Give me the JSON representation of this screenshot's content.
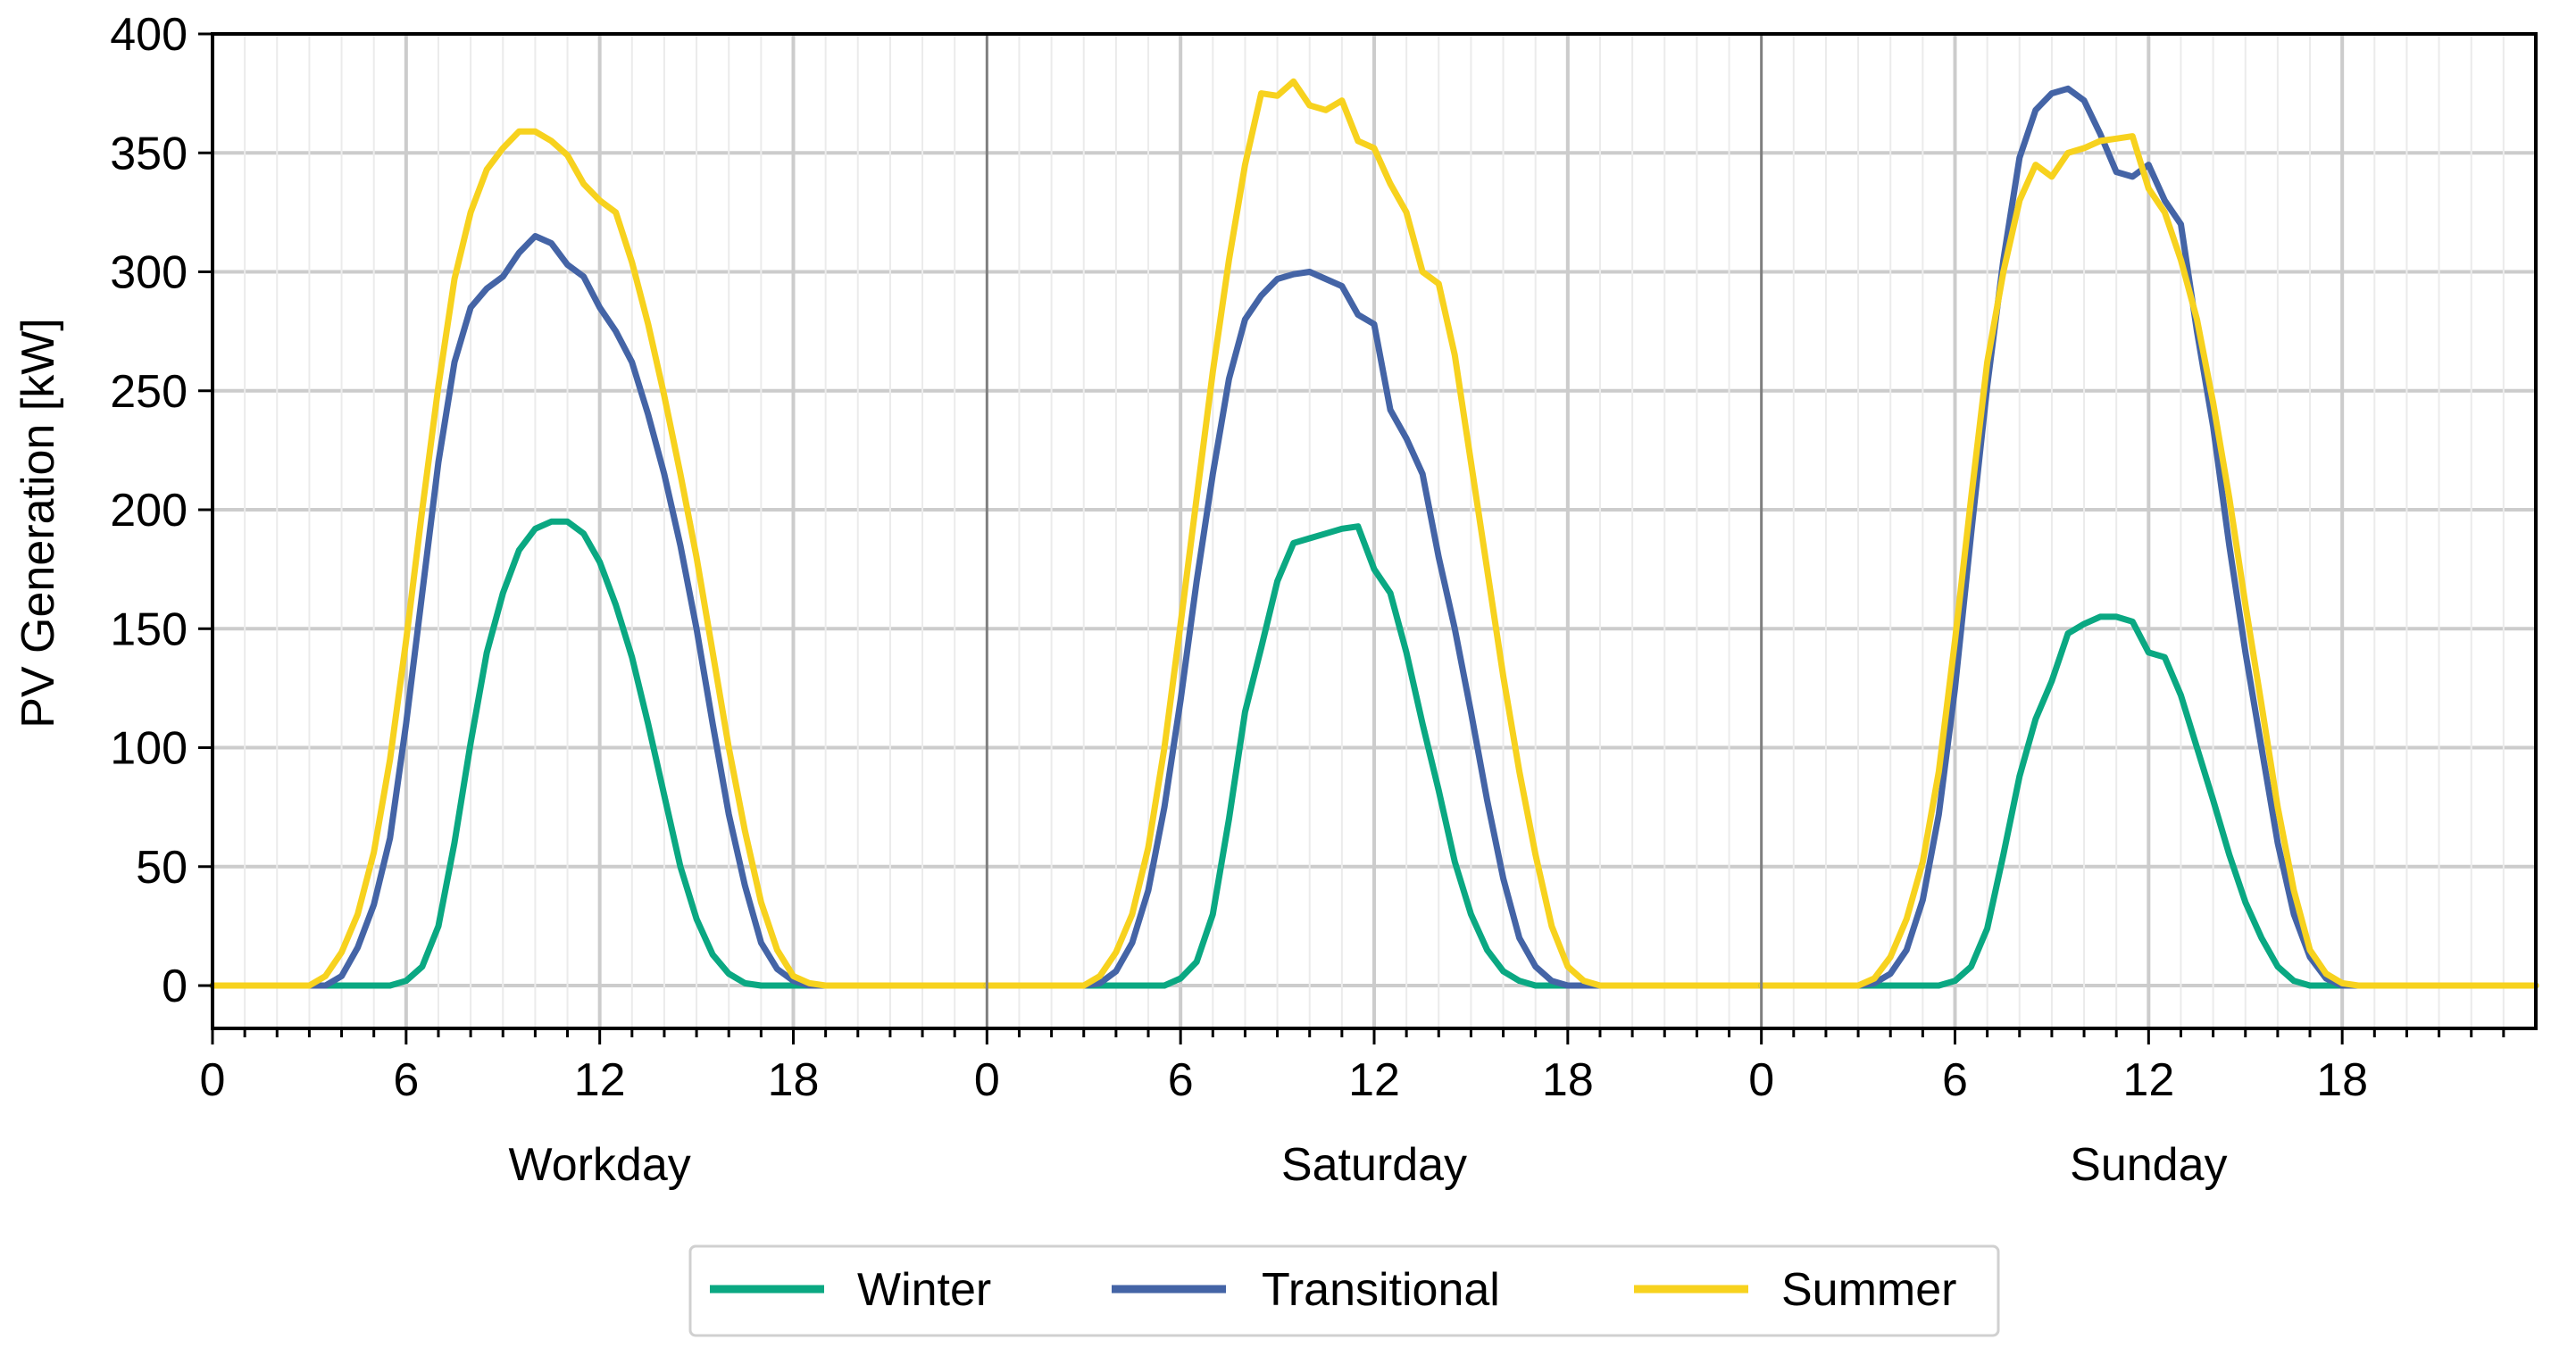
{
  "chart_data": {
    "type": "line",
    "ylabel": "PV Generation [kW]",
    "ylim": [
      -18,
      400
    ],
    "yticks": [
      0,
      50,
      100,
      150,
      200,
      250,
      300,
      350,
      400
    ],
    "xlim": [
      0,
      24
    ],
    "xticks": [
      0,
      6,
      12,
      18
    ],
    "xminor_step": 1,
    "grid": true,
    "legend_position": "bottom-center",
    "colors": {
      "Winter": "#0aa882",
      "Transitional": "#4464a6",
      "Summer": "#f7d21e"
    },
    "panels": [
      {
        "title": "Workday",
        "series": [
          {
            "name": "Winter",
            "x": [
              0,
              4.5,
              5.5,
              6,
              6.5,
              7,
              7.5,
              8,
              8.5,
              9,
              9.5,
              10,
              10.5,
              11,
              11.5,
              12,
              12.5,
              13,
              13.5,
              14,
              14.5,
              15,
              15.5,
              16,
              16.5,
              17,
              17.5,
              18,
              24
            ],
            "y": [
              0,
              0,
              0,
              2,
              8,
              25,
              60,
              102,
              140,
              165,
              183,
              192,
              195,
              195,
              190,
              178,
              160,
              138,
              110,
              80,
              50,
              28,
              13,
              5,
              1,
              0,
              0,
              0,
              0
            ]
          },
          {
            "name": "Transitional",
            "x": [
              0,
              3,
              3.5,
              4,
              4.5,
              5,
              5.5,
              6,
              6.5,
              7,
              7.5,
              8,
              8.5,
              9,
              9.5,
              10,
              10.5,
              11,
              11.5,
              12,
              12.5,
              13,
              13.5,
              14,
              14.5,
              15,
              15.5,
              16,
              16.5,
              17,
              17.5,
              18,
              18.5,
              19,
              24
            ],
            "y": [
              0,
              0,
              0,
              4,
              16,
              34,
              62,
              110,
              165,
              220,
              262,
              285,
              293,
              298,
              308,
              315,
              312,
              303,
              298,
              285,
              275,
              262,
              240,
              215,
              185,
              150,
              110,
              72,
              42,
              18,
              7,
              2,
              0,
              0,
              0
            ]
          },
          {
            "name": "Summer",
            "x": [
              0,
              3,
              3.5,
              4,
              4.5,
              5,
              5.5,
              6,
              6.5,
              7,
              7.5,
              8,
              8.5,
              9,
              9.5,
              10,
              10.5,
              11,
              11.5,
              12,
              12.5,
              13,
              13.5,
              14,
              14.5,
              15,
              15.5,
              16,
              16.5,
              17,
              17.5,
              18,
              18.5,
              19,
              24
            ],
            "y": [
              0,
              0,
              4,
              14,
              30,
              56,
              95,
              145,
              200,
              252,
              297,
              325,
              343,
              352,
              359,
              359,
              355,
              349,
              337,
              330,
              325,
              304,
              278,
              248,
              215,
              180,
              140,
              100,
              65,
              35,
              15,
              4,
              1,
              0,
              0
            ]
          }
        ]
      },
      {
        "title": "Saturday",
        "series": [
          {
            "name": "Winter",
            "x": [
              0,
              4.5,
              5.5,
              6,
              6.5,
              7,
              7.5,
              8,
              8.5,
              9,
              9.5,
              10,
              10.5,
              11,
              11.5,
              12,
              12.5,
              13,
              13.5,
              14,
              14.5,
              15,
              15.5,
              16,
              16.5,
              17,
              17.5,
              18,
              24
            ],
            "y": [
              0,
              0,
              0,
              3,
              10,
              30,
              70,
              115,
              142,
              170,
              186,
              188,
              190,
              192,
              193,
              175,
              165,
              140,
              110,
              82,
              52,
              30,
              15,
              6,
              2,
              0,
              0,
              0,
              0
            ]
          },
          {
            "name": "Transitional",
            "x": [
              0,
              3,
              3.5,
              4,
              4.5,
              5,
              5.5,
              6,
              6.5,
              7,
              7.5,
              8,
              8.5,
              9,
              9.5,
              10,
              10.5,
              11,
              11.5,
              12,
              12.5,
              13,
              13.5,
              14,
              14.5,
              15,
              15.5,
              16,
              16.5,
              17,
              17.5,
              18,
              18.5,
              19,
              24
            ],
            "y": [
              0,
              0,
              1,
              6,
              18,
              40,
              75,
              120,
              170,
              215,
              255,
              280,
              290,
              297,
              299,
              300,
              297,
              294,
              282,
              278,
              242,
              230,
              215,
              180,
              150,
              115,
              78,
              45,
              20,
              8,
              2,
              0,
              0,
              0,
              0
            ]
          },
          {
            "name": "Summer",
            "x": [
              0,
              3,
              3.5,
              4,
              4.5,
              5,
              5.5,
              6,
              6.5,
              7,
              7.5,
              8,
              8.5,
              9,
              9.5,
              10,
              10.5,
              11,
              11.5,
              12,
              12.5,
              13,
              13.5,
              14,
              14.5,
              15,
              15.5,
              16,
              16.5,
              17,
              17.5,
              18,
              18.5,
              19,
              24
            ],
            "y": [
              0,
              0,
              4,
              14,
              30,
              58,
              100,
              152,
              205,
              258,
              305,
              345,
              375,
              374,
              380,
              370,
              368,
              372,
              355,
              352,
              337,
              325,
              300,
              295,
              265,
              220,
              175,
              130,
              90,
              55,
              25,
              8,
              2,
              0,
              0
            ]
          }
        ]
      },
      {
        "title": "Sunday",
        "series": [
          {
            "name": "Winter",
            "x": [
              0,
              4.5,
              5.5,
              6,
              6.5,
              7,
              7.5,
              8,
              8.5,
              9,
              9.5,
              10,
              10.5,
              11,
              11.5,
              12,
              12.5,
              13,
              13.5,
              14,
              14.5,
              15,
              15.5,
              16,
              16.5,
              17,
              17.5,
              18,
              24
            ],
            "y": [
              0,
              0,
              0,
              2,
              8,
              24,
              55,
              88,
              112,
              128,
              148,
              152,
              155,
              155,
              153,
              140,
              138,
              122,
              100,
              78,
              55,
              35,
              20,
              8,
              2,
              0,
              0,
              0,
              0
            ]
          },
          {
            "name": "Transitional",
            "x": [
              0,
              3,
              3.5,
              4,
              4.5,
              5,
              5.5,
              6,
              6.5,
              7,
              7.5,
              8,
              8.5,
              9,
              9.5,
              10,
              10.5,
              11,
              11.5,
              12,
              12.5,
              13,
              13.5,
              14,
              14.5,
              15,
              15.5,
              16,
              16.5,
              17,
              17.5,
              18,
              18.5,
              19,
              24
            ],
            "y": [
              0,
              0,
              1,
              5,
              15,
              36,
              72,
              125,
              190,
              252,
              305,
              348,
              368,
              375,
              377,
              372,
              358,
              342,
              340,
              345,
              330,
              320,
              275,
              235,
              185,
              140,
              100,
              60,
              30,
              12,
              3,
              0,
              0,
              0,
              0
            ]
          },
          {
            "name": "Summer",
            "x": [
              0,
              3,
              3.5,
              4,
              4.5,
              5,
              5.5,
              6,
              6.5,
              7,
              7.5,
              8,
              8.5,
              9,
              9.5,
              10,
              10.5,
              11,
              11.5,
              12,
              12.5,
              13,
              13.5,
              14,
              14.5,
              15,
              15.5,
              16,
              16.5,
              17,
              17.5,
              18,
              18.5,
              19,
              24
            ],
            "y": [
              0,
              0,
              3,
              12,
              28,
              52,
              90,
              145,
              205,
              262,
              300,
              330,
              345,
              340,
              350,
              352,
              355,
              356,
              357,
              335,
              325,
              305,
              280,
              245,
              205,
              160,
              118,
              75,
              40,
              15,
              5,
              1,
              0,
              0,
              0
            ]
          }
        ]
      }
    ]
  },
  "legend": {
    "items": [
      {
        "label": "Winter",
        "color": "#0aa882"
      },
      {
        "label": "Transitional",
        "color": "#4464a6"
      },
      {
        "label": "Summer",
        "color": "#f7d21e"
      }
    ]
  }
}
